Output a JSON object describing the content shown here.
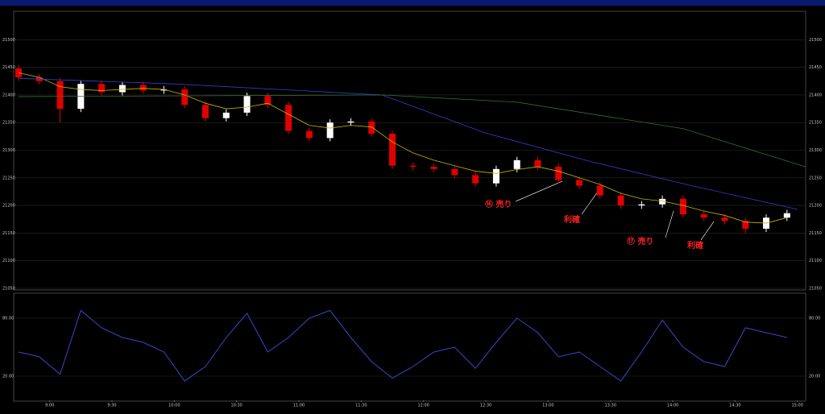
{
  "chart_data": [
    {
      "type": "candlestick",
      "x": [
        525,
        535,
        545,
        555,
        565,
        575,
        585,
        595,
        605,
        615,
        625,
        635,
        645,
        655,
        665,
        675,
        685,
        695,
        705,
        715,
        725,
        735,
        745,
        755,
        765,
        775,
        785,
        795,
        805,
        815,
        825,
        835,
        845,
        855,
        865,
        875,
        885,
        895
      ],
      "open": [
        21448,
        21432,
        21425,
        21375,
        21420,
        21405,
        21418,
        21408,
        21410,
        21382,
        21358,
        21368,
        21398,
        21382,
        21335,
        21322,
        21350,
        21352,
        21330,
        21272,
        21270,
        21266,
        21255,
        21240,
        21266,
        21282,
        21270,
        21246,
        21236,
        21218,
        21200,
        21202,
        21212,
        21184,
        21178,
        21172,
        21158,
        21178
      ],
      "high": [
        21454,
        21438,
        21431,
        21426,
        21426,
        21424,
        21424,
        21416,
        21416,
        21388,
        21374,
        21404,
        21404,
        21388,
        21341,
        21356,
        21358,
        21358,
        21336,
        21278,
        21276,
        21272,
        21261,
        21272,
        21288,
        21288,
        21276,
        21252,
        21242,
        21224,
        21208,
        21218,
        21218,
        21190,
        21184,
        21178,
        21184,
        21192
      ],
      "low": [
        21426,
        21419,
        21350,
        21369,
        21399,
        21399,
        21402,
        21402,
        21376,
        21352,
        21352,
        21362,
        21376,
        21329,
        21316,
        21316,
        21344,
        21324,
        21266,
        21264,
        21260,
        21249,
        21234,
        21234,
        21260,
        21264,
        21240,
        21230,
        21212,
        21194,
        21194,
        21196,
        21178,
        21172,
        21166,
        21150,
        21152,
        21172
      ],
      "close": [
        21432,
        21425,
        21375,
        21420,
        21405,
        21418,
        21408,
        21410,
        21382,
        21358,
        21368,
        21398,
        21382,
        21335,
        21322,
        21350,
        21352,
        21330,
        21272,
        21270,
        21266,
        21255,
        21240,
        21266,
        21282,
        21270,
        21246,
        21236,
        21218,
        21200,
        21202,
        21212,
        21184,
        21178,
        21172,
        21158,
        21178,
        21186
      ],
      "up_color": "#ffffff",
      "down_color": "#e00000",
      "lines": [
        {
          "color": "#c8b400",
          "values": [
            21440,
            21432,
            21415,
            21410,
            21408,
            21410,
            21412,
            21410,
            21400,
            21385,
            21375,
            21378,
            21385,
            21365,
            21345,
            21340,
            21345,
            21342,
            21315,
            21295,
            21282,
            21272,
            21262,
            21258,
            21265,
            21270,
            21262,
            21250,
            21238,
            21222,
            21212,
            21208,
            21200,
            21190,
            21182,
            21170,
            21168,
            21178
          ]
        },
        {
          "color": "#3040d0",
          "x": [
            525,
            600,
            700,
            750,
            800,
            850,
            900
          ],
          "values": [
            21430,
            21420,
            21400,
            21331,
            21280,
            21235,
            21193
          ]
        },
        {
          "color": "#307030",
          "x": [
            525,
            700,
            765,
            845,
            904
          ],
          "values": [
            21397,
            21400,
            21387,
            21339,
            21270
          ]
        }
      ],
      "xlim": [
        525,
        904
      ],
      "ylim": [
        21050,
        21550
      ],
      "yticks": [
        21050,
        21100,
        21150,
        21200,
        21250,
        21300,
        21350,
        21400,
        21450,
        21500
      ],
      "xticks": [
        {
          "value": 540,
          "label": "9:00"
        },
        {
          "value": 570,
          "label": "9:30"
        },
        {
          "value": 600,
          "label": "10:00"
        },
        {
          "value": 630,
          "label": "10:30"
        },
        {
          "value": 660,
          "label": "11:00"
        },
        {
          "value": 690,
          "label": "11:30"
        },
        {
          "value": 720,
          "label": "12:00"
        },
        {
          "value": 750,
          "label": "12:30"
        },
        {
          "value": 780,
          "label": "13:00"
        },
        {
          "value": 810,
          "label": "13:30"
        },
        {
          "value": 840,
          "label": "14:00"
        },
        {
          "value": 870,
          "label": "14:30"
        },
        {
          "value": 900,
          "label": "15:00"
        }
      ],
      "annotations": [
        "⑯ 売り",
        "利確",
        "⑰ 売り",
        "利確"
      ],
      "grid": true
    },
    {
      "type": "line",
      "color": "#3848c8",
      "values": [
        45,
        40,
        22,
        88,
        70,
        60,
        55,
        45,
        15,
        30,
        60,
        85,
        45,
        60,
        80,
        88,
        60,
        35,
        18,
        30,
        45,
        50,
        28,
        55,
        80,
        65,
        40,
        45,
        30,
        15,
        45,
        78,
        50,
        35,
        30,
        70,
        65,
        60
      ],
      "ylim": [
        0,
        100
      ],
      "yticks": [
        {
          "value": 20,
          "label": "20.00"
        },
        {
          "value": 80,
          "label": "80.00"
        }
      ],
      "grid": true
    }
  ]
}
